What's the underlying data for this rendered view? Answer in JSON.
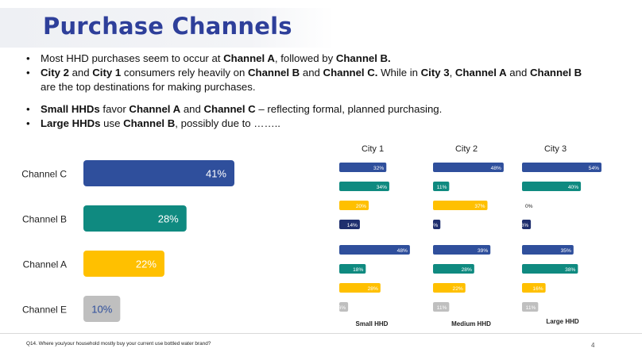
{
  "title": "Purchase Channels",
  "bullets": [
    [
      {
        "t": "Most HHD purchases seem to occur at "
      },
      {
        "t": "Channel A",
        "b": true
      },
      {
        "t": ", followed by "
      },
      {
        "t": "Channel B.",
        "b": true
      }
    ],
    [
      {
        "t": "City 2",
        "b": true
      },
      {
        "t": " and "
      },
      {
        "t": "City 1",
        "b": true
      },
      {
        "t": " consumers rely heavily on "
      },
      {
        "t": "Channel B",
        "b": true
      },
      {
        "t": " and "
      },
      {
        "t": "Channel C.",
        "b": true
      },
      {
        "t": " While in "
      },
      {
        "t": "City 3",
        "b": true
      },
      {
        "t": ", "
      },
      {
        "t": "Channel A",
        "b": true
      },
      {
        "t": " and "
      },
      {
        "t": "Channel B",
        "b": true
      },
      {
        "t": " are the top destinations for making purchases."
      }
    ],
    [
      {
        "t": "Small HHDs",
        "b": true
      },
      {
        "t": " favor "
      },
      {
        "t": "Channel A",
        "b": true
      },
      {
        "t": " and "
      },
      {
        "t": "Channel C",
        "b": true
      },
      {
        "t": " – reflecting formal, planned purchasing."
      }
    ],
    [
      {
        "t": "Large HHDs",
        "b": true
      },
      {
        "t": " use "
      },
      {
        "t": "Channel B",
        "b": true
      },
      {
        "t": ", possibly due to …….."
      }
    ]
  ],
  "chart_data": [
    {
      "type": "bar",
      "orientation": "horizontal",
      "categories": [
        "Channel C",
        "Channel B",
        "Channel A",
        "Channel E"
      ],
      "values": [
        41,
        28,
        22,
        10
      ],
      "value_labels": [
        "41%",
        "28%",
        "22%",
        "10%"
      ],
      "colors": [
        "#2f4f9c",
        "#0f8a80",
        "#ffc000",
        "#bfbfbf"
      ],
      "label_colors": [
        "#ffffff",
        "#ffffff",
        "#ffffff",
        "#2f4f9c"
      ],
      "xlim": [
        0,
        41
      ]
    },
    {
      "type": "bar",
      "orientation": "horizontal",
      "panel_columns": [
        "City 1",
        "City 2",
        "City 3"
      ],
      "panel_rows": [
        "Small HHD",
        "Medium HHD",
        "Large HHD"
      ],
      "colors": [
        "#2f4f9c",
        "#0f8a80",
        "#ffc000",
        "#1f2f6e"
      ],
      "row2_colors": [
        "#2f4f9c",
        "#0f8a80",
        "#ffc000",
        "#bfbfbf"
      ],
      "city_values": [
        [
          32,
          34,
          20,
          14
        ],
        [
          48,
          11,
          37,
          5
        ],
        [
          54,
          40,
          0,
          6
        ]
      ],
      "city_labels": [
        [
          "32%",
          "34%",
          "20%",
          "14%"
        ],
        [
          "48%",
          "11%",
          "37%",
          "5%"
        ],
        [
          "54%",
          "40%",
          "0%",
          "6%"
        ]
      ],
      "hhd_values": [
        [
          48,
          18,
          28,
          6
        ],
        [
          39,
          28,
          22,
          11
        ],
        [
          35,
          38,
          16,
          11
        ]
      ],
      "hhd_labels": [
        [
          "48%",
          "18%",
          "28%",
          "6%"
        ],
        [
          "39%",
          "28%",
          "22%",
          "11%"
        ],
        [
          "35%",
          "38%",
          "16%",
          "11%"
        ]
      ],
      "xlim": [
        0,
        54
      ]
    }
  ],
  "footnote": "Q14. Where you/your household mostly buy your current use bottled water brand?",
  "page_number": "4"
}
